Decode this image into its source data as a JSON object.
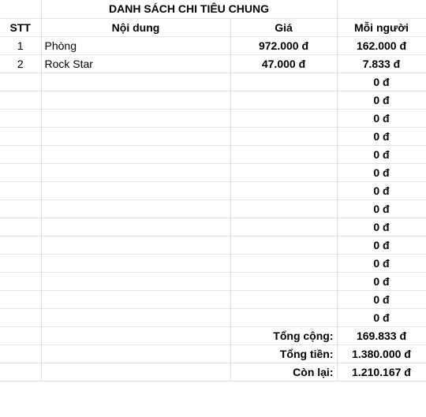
{
  "sheet": {
    "title": "DANH SÁCH CHI TIÊU CHUNG",
    "headers": {
      "stt": "STT",
      "content": "Nội dung",
      "price": "Giá",
      "per_person": "Mỗi người"
    },
    "rows": [
      {
        "stt": "1",
        "content": "Phòng",
        "price": "972.000 đ",
        "per_person": "162.000 đ"
      },
      {
        "stt": "2",
        "content": "Rock Star",
        "price": "47.000 đ",
        "per_person": "7.833 đ"
      },
      {
        "stt": "",
        "content": "",
        "price": "",
        "per_person": "0 đ"
      },
      {
        "stt": "",
        "content": "",
        "price": "",
        "per_person": "0 đ"
      },
      {
        "stt": "",
        "content": "",
        "price": "",
        "per_person": "0 đ"
      },
      {
        "stt": "",
        "content": "",
        "price": "",
        "per_person": "0 đ"
      },
      {
        "stt": "",
        "content": "",
        "price": "",
        "per_person": "0 đ"
      },
      {
        "stt": "",
        "content": "",
        "price": "",
        "per_person": "0 đ"
      },
      {
        "stt": "",
        "content": "",
        "price": "",
        "per_person": "0 đ"
      },
      {
        "stt": "",
        "content": "",
        "price": "",
        "per_person": "0 đ"
      },
      {
        "stt": "",
        "content": "",
        "price": "",
        "per_person": "0 đ"
      },
      {
        "stt": "",
        "content": "",
        "price": "",
        "per_person": "0 đ"
      },
      {
        "stt": "",
        "content": "",
        "price": "",
        "per_person": "0 đ"
      },
      {
        "stt": "",
        "content": "",
        "price": "",
        "per_person": "0 đ"
      },
      {
        "stt": "",
        "content": "",
        "price": "",
        "per_person": "0 đ"
      },
      {
        "stt": "",
        "content": "",
        "price": "",
        "per_person": "0 đ"
      }
    ],
    "summary": {
      "total_per_person_label": "Tổng cộng:",
      "total_per_person_value": "169.833 đ",
      "total_money_label": "Tổng tiền:",
      "total_money_value": "1.380.000 đ",
      "remaining_label": "Còn lại:",
      "remaining_value": "1.210.167 đ"
    },
    "colors": {
      "price": "#ff0000",
      "per_person": "#1c3ee8",
      "total_per_person": "#6aa84f",
      "total_money": "#ff0000",
      "remaining": "#000000",
      "gridline": "#e2e2e2"
    }
  }
}
